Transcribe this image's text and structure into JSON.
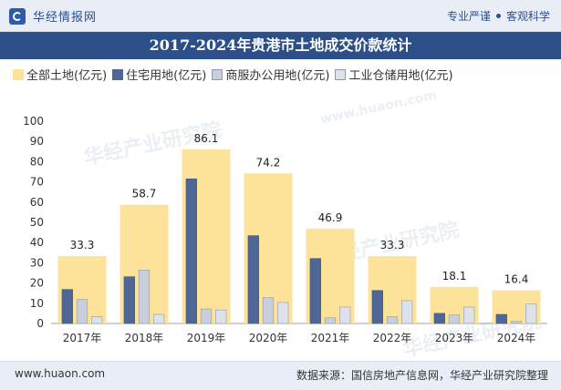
{
  "header": {
    "brand": "华经情报网",
    "tag_left": "专业严谨",
    "tag_right": "客观科学"
  },
  "footer": {
    "url": "www.huaon.com",
    "source": "数据来源：国信房地产信息网，华经产业研究院整理"
  },
  "watermark": {
    "text": "华经产业研究院",
    "url": "www.huaon.com"
  },
  "colors": {
    "total": "#fde29a",
    "residential": "#4e6796",
    "commercial": "#c9cfda",
    "industrial": "#dde1ea",
    "title_band": "#2c4f8a",
    "topbar": "#e9eef6"
  },
  "chart_data": {
    "type": "bar",
    "title": "2017-2024年贵港市土地成交价款统计",
    "categories": [
      "2017年",
      "2018年",
      "2019年",
      "2020年",
      "2021年",
      "2022年",
      "2023年",
      "2024年"
    ],
    "series": [
      {
        "name": "全部土地(亿元)",
        "values": [
          33.3,
          58.7,
          86.1,
          74.2,
          46.9,
          33.3,
          18.1,
          16.4
        ],
        "labeled": true
      },
      {
        "name": "住宅用地(亿元)",
        "values": [
          16.8,
          23.1,
          71.5,
          43.4,
          32.1,
          16.3,
          5.0,
          4.5
        ]
      },
      {
        "name": "商服办公用地(亿元)",
        "values": [
          11.9,
          26.4,
          7.2,
          12.8,
          2.8,
          3.3,
          4.2,
          1.0
        ]
      },
      {
        "name": "工业仓储用地(亿元)",
        "values": [
          3.4,
          4.5,
          6.7,
          10.4,
          8.1,
          11.3,
          8.1,
          9.6
        ]
      }
    ],
    "ylim": [
      0,
      100
    ],
    "yticks": [
      0,
      10,
      20,
      30,
      40,
      50,
      60,
      70,
      80,
      90,
      100
    ],
    "legend_position": "top",
    "grid": false
  }
}
